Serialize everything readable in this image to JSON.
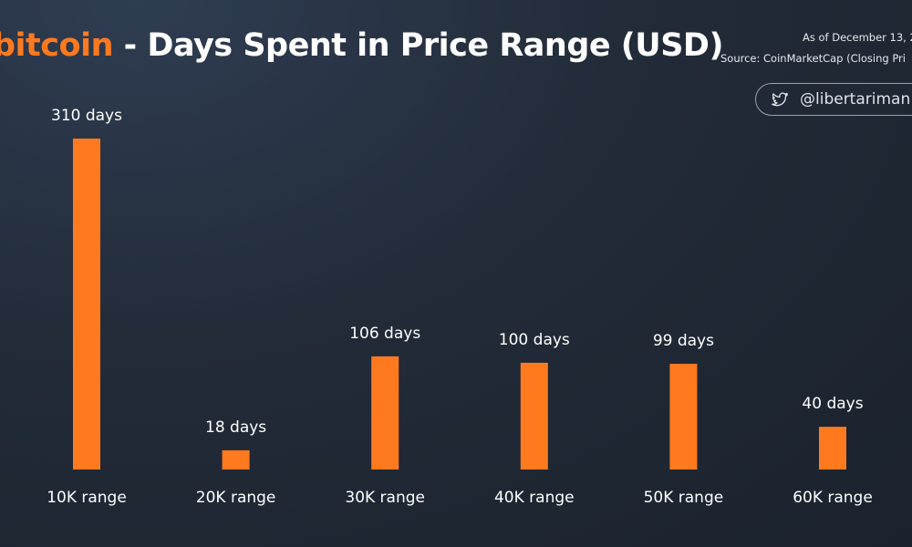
{
  "header": {
    "title_accent": "bitcoin",
    "title_rest": " - Days Spent in Price Range (USD)",
    "as_of": "As of December 13, 2",
    "source": "Source: CoinMarketCap (Closing Pri",
    "handle": "@libertariman",
    "handle_icon": "twitter-icon"
  },
  "colors": {
    "bar": "#ff7a1f",
    "accent": "#ff7a1f"
  },
  "chart_data": {
    "type": "bar",
    "title": "bitcoin - Days Spent in Price Range (USD)",
    "categories": [
      "10K range",
      "20K range",
      "30K range",
      "40K range",
      "50K range",
      "60K range"
    ],
    "values": [
      310,
      18,
      106,
      100,
      99,
      40
    ],
    "data_labels": [
      "310 days",
      "18 days",
      "106 days",
      "100 days",
      "99 days",
      "40 days"
    ],
    "xlabel": "",
    "ylabel": "",
    "grid": false
  }
}
